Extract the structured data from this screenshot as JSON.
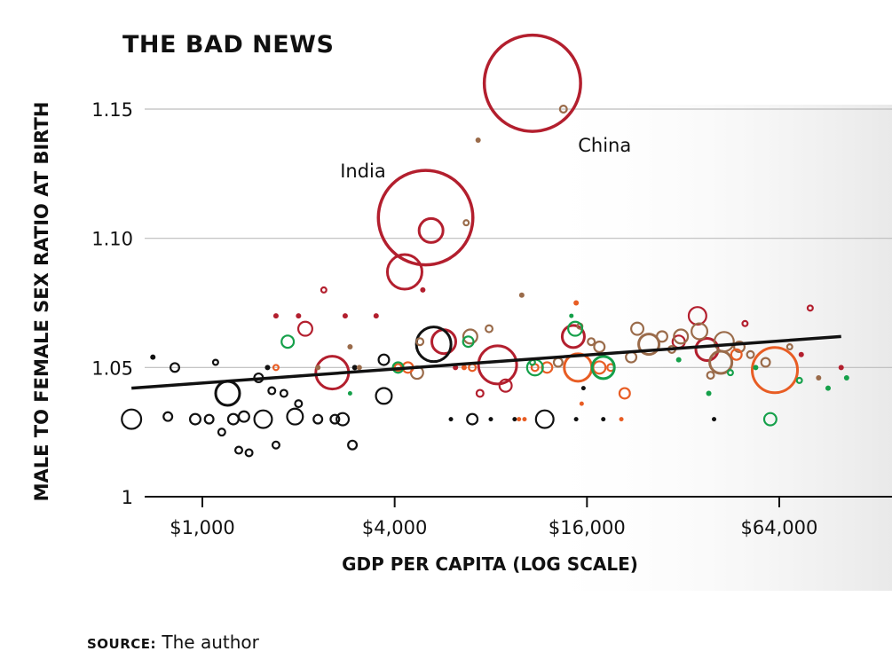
{
  "chart_data": {
    "type": "scatter",
    "title": "THE BAD NEWS",
    "xlabel": "GDP PER CAPITA (LOG SCALE)",
    "ylabel": "MALE TO FEMALE SEX RATIO AT BIRTH",
    "x_scale": "log",
    "xlim": [
      600,
      110000
    ],
    "ylim": [
      1.0,
      1.165
    ],
    "x_ticks": [
      {
        "value": 1000,
        "label": "$1,000"
      },
      {
        "value": 4000,
        "label": "$4,000"
      },
      {
        "value": 16000,
        "label": "$16,000"
      },
      {
        "value": 64000,
        "label": "$64,000"
      }
    ],
    "y_ticks": [
      {
        "value": 1.0,
        "label": "1"
      },
      {
        "value": 1.05,
        "label": "1.05"
      },
      {
        "value": 1.1,
        "label": "1.10"
      },
      {
        "value": 1.15,
        "label": "1.15"
      }
    ],
    "gridlines": "horizontal",
    "trend_line": {
      "x": [
        600,
        100000
      ],
      "y": [
        1.042,
        1.062
      ]
    },
    "annotations": [
      {
        "text": "China",
        "x": 15000,
        "y": 1.1335
      },
      {
        "text": "India",
        "x": 2700,
        "y": 1.1235
      }
    ],
    "series_colors": {
      "black": "#111111",
      "red": "#b31f2e",
      "brown": "#9a6b4a",
      "orange": "#e85d24",
      "green": "#15a04a"
    },
    "points": [
      {
        "x": 10800,
        "y": 1.16,
        "r": 56,
        "c": "red"
      },
      {
        "x": 5000,
        "y": 1.108,
        "r": 55,
        "c": "red"
      },
      {
        "x": 5200,
        "y": 1.103,
        "r": 15,
        "c": "red"
      },
      {
        "x": 4300,
        "y": 1.087,
        "r": 21,
        "c": "red"
      },
      {
        "x": 13500,
        "y": 1.15,
        "r": 5,
        "c": "brown"
      },
      {
        "x": 7300,
        "y": 1.138,
        "r": 3,
        "c": "brown"
      },
      {
        "x": 6700,
        "y": 1.106,
        "r": 4,
        "c": "brown"
      },
      {
        "x": 10000,
        "y": 1.078,
        "r": 3,
        "c": "brown"
      },
      {
        "x": 2400,
        "y": 1.08,
        "r": 4,
        "c": "red"
      },
      {
        "x": 4900,
        "y": 1.08,
        "r": 3,
        "c": "red"
      },
      {
        "x": 2100,
        "y": 1.065,
        "r": 9,
        "c": "red"
      },
      {
        "x": 5700,
        "y": 1.06,
        "r": 15,
        "c": "red"
      },
      {
        "x": 14500,
        "y": 1.062,
        "r": 14,
        "c": "red"
      },
      {
        "x": 2550,
        "y": 1.048,
        "r": 20,
        "c": "red"
      },
      {
        "x": 8400,
        "y": 1.051,
        "r": 23,
        "c": "red"
      },
      {
        "x": 8900,
        "y": 1.043,
        "r": 8,
        "c": "red"
      },
      {
        "x": 35500,
        "y": 1.07,
        "r": 11,
        "c": "red"
      },
      {
        "x": 38000,
        "y": 1.057,
        "r": 14,
        "c": "red"
      },
      {
        "x": 31000,
        "y": 1.06,
        "r": 8,
        "c": "red"
      },
      {
        "x": 5300,
        "y": 1.059,
        "r": 21,
        "c": "black"
      },
      {
        "x": 600,
        "y": 1.03,
        "r": 12,
        "c": "black"
      },
      {
        "x": 1200,
        "y": 1.04,
        "r": 15,
        "c": "black"
      },
      {
        "x": 1550,
        "y": 1.03,
        "r": 11,
        "c": "black"
      },
      {
        "x": 1950,
        "y": 1.031,
        "r": 10,
        "c": "black"
      },
      {
        "x": 2750,
        "y": 1.03,
        "r": 8,
        "c": "black"
      },
      {
        "x": 3700,
        "y": 1.039,
        "r": 10,
        "c": "black"
      },
      {
        "x": 11800,
        "y": 1.03,
        "r": 11,
        "c": "black"
      },
      {
        "x": 7000,
        "y": 1.03,
        "r": 7,
        "c": "black"
      },
      {
        "x": 820,
        "y": 1.05,
        "r": 6,
        "c": "black"
      },
      {
        "x": 950,
        "y": 1.03,
        "r": 7,
        "c": "black"
      },
      {
        "x": 1050,
        "y": 1.03,
        "r": 6,
        "c": "black"
      },
      {
        "x": 1250,
        "y": 1.03,
        "r": 7,
        "c": "black"
      },
      {
        "x": 1350,
        "y": 1.031,
        "r": 7,
        "c": "black"
      },
      {
        "x": 1300,
        "y": 1.018,
        "r": 5,
        "c": "black"
      },
      {
        "x": 1400,
        "y": 1.017,
        "r": 5,
        "c": "black"
      },
      {
        "x": 1500,
        "y": 1.046,
        "r": 6,
        "c": "black"
      },
      {
        "x": 1650,
        "y": 1.041,
        "r": 5,
        "c": "black"
      },
      {
        "x": 1800,
        "y": 1.04,
        "r": 5,
        "c": "black"
      },
      {
        "x": 1700,
        "y": 1.02,
        "r": 5,
        "c": "black"
      },
      {
        "x": 2000,
        "y": 1.036,
        "r": 5,
        "c": "black"
      },
      {
        "x": 2300,
        "y": 1.03,
        "r": 6,
        "c": "black"
      },
      {
        "x": 2600,
        "y": 1.03,
        "r": 6,
        "c": "black"
      },
      {
        "x": 2950,
        "y": 1.02,
        "r": 6,
        "c": "black"
      },
      {
        "x": 3700,
        "y": 1.053,
        "r": 7,
        "c": "black"
      },
      {
        "x": 1150,
        "y": 1.025,
        "r": 5,
        "c": "black"
      },
      {
        "x": 1100,
        "y": 1.052,
        "r": 4,
        "c": "black"
      },
      {
        "x": 780,
        "y": 1.031,
        "r": 6,
        "c": "black"
      },
      {
        "x": 700,
        "y": 1.054,
        "r": 3,
        "c": "black"
      },
      {
        "x": 6000,
        "y": 1.03,
        "r": 2.5,
        "c": "black"
      },
      {
        "x": 8000,
        "y": 1.03,
        "r": 2.5,
        "c": "black"
      },
      {
        "x": 9500,
        "y": 1.03,
        "r": 2.5,
        "c": "black"
      },
      {
        "x": 14800,
        "y": 1.03,
        "r": 2.5,
        "c": "black"
      },
      {
        "x": 15600,
        "y": 1.042,
        "r": 2.5,
        "c": "black"
      },
      {
        "x": 18000,
        "y": 1.03,
        "r": 2.5,
        "c": "black"
      },
      {
        "x": 40000,
        "y": 1.03,
        "r": 2.5,
        "c": "black"
      },
      {
        "x": 3000,
        "y": 1.05,
        "r": 3,
        "c": "black"
      },
      {
        "x": 1600,
        "y": 1.05,
        "r": 3,
        "c": "black"
      },
      {
        "x": 2900,
        "y": 1.058,
        "r": 3,
        "c": "brown"
      },
      {
        "x": 4800,
        "y": 1.06,
        "r": 5,
        "c": "brown"
      },
      {
        "x": 6900,
        "y": 1.062,
        "r": 9,
        "c": "brown"
      },
      {
        "x": 7900,
        "y": 1.065,
        "r": 5,
        "c": "brown"
      },
      {
        "x": 15200,
        "y": 1.066,
        "r": 4,
        "c": "brown"
      },
      {
        "x": 16500,
        "y": 1.06,
        "r": 5,
        "c": "brown"
      },
      {
        "x": 17500,
        "y": 1.058,
        "r": 7,
        "c": "brown"
      },
      {
        "x": 23000,
        "y": 1.065,
        "r": 8,
        "c": "brown"
      },
      {
        "x": 25000,
        "y": 1.059,
        "r": 13,
        "c": "brown"
      },
      {
        "x": 27500,
        "y": 1.062,
        "r": 7,
        "c": "brown"
      },
      {
        "x": 29500,
        "y": 1.057,
        "r": 5,
        "c": "brown"
      },
      {
        "x": 31500,
        "y": 1.062,
        "r": 9,
        "c": "brown"
      },
      {
        "x": 36000,
        "y": 1.064,
        "r": 10,
        "c": "brown"
      },
      {
        "x": 43000,
        "y": 1.06,
        "r": 12,
        "c": "brown"
      },
      {
        "x": 48000,
        "y": 1.058,
        "r": 7,
        "c": "brown"
      },
      {
        "x": 42000,
        "y": 1.052,
        "r": 14,
        "c": "brown"
      },
      {
        "x": 39000,
        "y": 1.047,
        "r": 5,
        "c": "brown"
      },
      {
        "x": 52000,
        "y": 1.055,
        "r": 5,
        "c": "brown"
      },
      {
        "x": 58000,
        "y": 1.052,
        "r": 6,
        "c": "brown"
      },
      {
        "x": 69000,
        "y": 1.058,
        "r": 4,
        "c": "brown"
      },
      {
        "x": 85000,
        "y": 1.046,
        "r": 3,
        "c": "brown"
      },
      {
        "x": 13000,
        "y": 1.052,
        "r": 6,
        "c": "brown"
      },
      {
        "x": 22000,
        "y": 1.054,
        "r": 7,
        "c": "brown"
      },
      {
        "x": 4700,
        "y": 1.048,
        "r": 8,
        "c": "brown"
      },
      {
        "x": 3100,
        "y": 1.05,
        "r": 3,
        "c": "brown"
      },
      {
        "x": 2300,
        "y": 1.05,
        "r": 3,
        "c": "brown"
      },
      {
        "x": 1700,
        "y": 1.05,
        "r": 4,
        "c": "orange"
      },
      {
        "x": 4400,
        "y": 1.05,
        "r": 7,
        "c": "orange"
      },
      {
        "x": 4100,
        "y": 1.05,
        "r": 5,
        "c": "orange"
      },
      {
        "x": 6600,
        "y": 1.05,
        "r": 3,
        "c": "orange"
      },
      {
        "x": 7000,
        "y": 1.05,
        "r": 5,
        "c": "orange"
      },
      {
        "x": 11000,
        "y": 1.05,
        "r": 5,
        "c": "orange"
      },
      {
        "x": 12000,
        "y": 1.05,
        "r": 7,
        "c": "orange"
      },
      {
        "x": 15000,
        "y": 1.05,
        "r": 17,
        "c": "orange"
      },
      {
        "x": 17500,
        "y": 1.05,
        "r": 8,
        "c": "orange"
      },
      {
        "x": 19000,
        "y": 1.05,
        "r": 5,
        "c": "orange"
      },
      {
        "x": 21000,
        "y": 1.04,
        "r": 7,
        "c": "orange"
      },
      {
        "x": 47000,
        "y": 1.055,
        "r": 7,
        "c": "orange"
      },
      {
        "x": 62000,
        "y": 1.049,
        "r": 27,
        "c": "orange"
      },
      {
        "x": 14800,
        "y": 1.075,
        "r": 3,
        "c": "orange"
      },
      {
        "x": 15400,
        "y": 1.036,
        "r": 2.5,
        "c": "orange"
      },
      {
        "x": 9800,
        "y": 1.03,
        "r": 2.5,
        "c": "orange"
      },
      {
        "x": 10200,
        "y": 1.03,
        "r": 2.5,
        "c": "orange"
      },
      {
        "x": 20500,
        "y": 1.03,
        "r": 2.5,
        "c": "orange"
      },
      {
        "x": 1850,
        "y": 1.06,
        "r": 8,
        "c": "green"
      },
      {
        "x": 4100,
        "y": 1.05,
        "r": 7,
        "c": "green"
      },
      {
        "x": 6800,
        "y": 1.06,
        "r": 7,
        "c": "green"
      },
      {
        "x": 11000,
        "y": 1.05,
        "r": 10,
        "c": "green"
      },
      {
        "x": 14700,
        "y": 1.065,
        "r": 9,
        "c": "green"
      },
      {
        "x": 18000,
        "y": 1.05,
        "r": 14,
        "c": "green"
      },
      {
        "x": 60000,
        "y": 1.03,
        "r": 8,
        "c": "green"
      },
      {
        "x": 10800,
        "y": 1.052,
        "r": 4,
        "c": "green"
      },
      {
        "x": 31000,
        "y": 1.053,
        "r": 3,
        "c": "green"
      },
      {
        "x": 38500,
        "y": 1.04,
        "r": 3,
        "c": "green"
      },
      {
        "x": 45000,
        "y": 1.048,
        "r": 4,
        "c": "green"
      },
      {
        "x": 54000,
        "y": 1.05,
        "r": 3,
        "c": "green"
      },
      {
        "x": 74000,
        "y": 1.045,
        "r": 4,
        "c": "green"
      },
      {
        "x": 91000,
        "y": 1.042,
        "r": 3,
        "c": "green"
      },
      {
        "x": 104000,
        "y": 1.046,
        "r": 3,
        "c": "green"
      },
      {
        "x": 2900,
        "y": 1.04,
        "r": 2.5,
        "c": "green"
      },
      {
        "x": 14300,
        "y": 1.07,
        "r": 2.5,
        "c": "green"
      },
      {
        "x": 1700,
        "y": 1.07,
        "r": 3,
        "c": "red"
      },
      {
        "x": 2000,
        "y": 1.07,
        "r": 3,
        "c": "red"
      },
      {
        "x": 2800,
        "y": 1.07,
        "r": 3,
        "c": "red"
      },
      {
        "x": 3500,
        "y": 1.07,
        "r": 3,
        "c": "red"
      },
      {
        "x": 6200,
        "y": 1.05,
        "r": 3,
        "c": "red"
      },
      {
        "x": 7400,
        "y": 1.04,
        "r": 5,
        "c": "red"
      },
      {
        "x": 50000,
        "y": 1.067,
        "r": 4,
        "c": "red"
      },
      {
        "x": 80000,
        "y": 1.073,
        "r": 4,
        "c": "red"
      },
      {
        "x": 100000,
        "y": 1.05,
        "r": 3,
        "c": "red"
      },
      {
        "x": 75000,
        "y": 1.055,
        "r": 3,
        "c": "red"
      }
    ]
  },
  "source": {
    "label": "SOURCE:",
    "text": "The author"
  }
}
